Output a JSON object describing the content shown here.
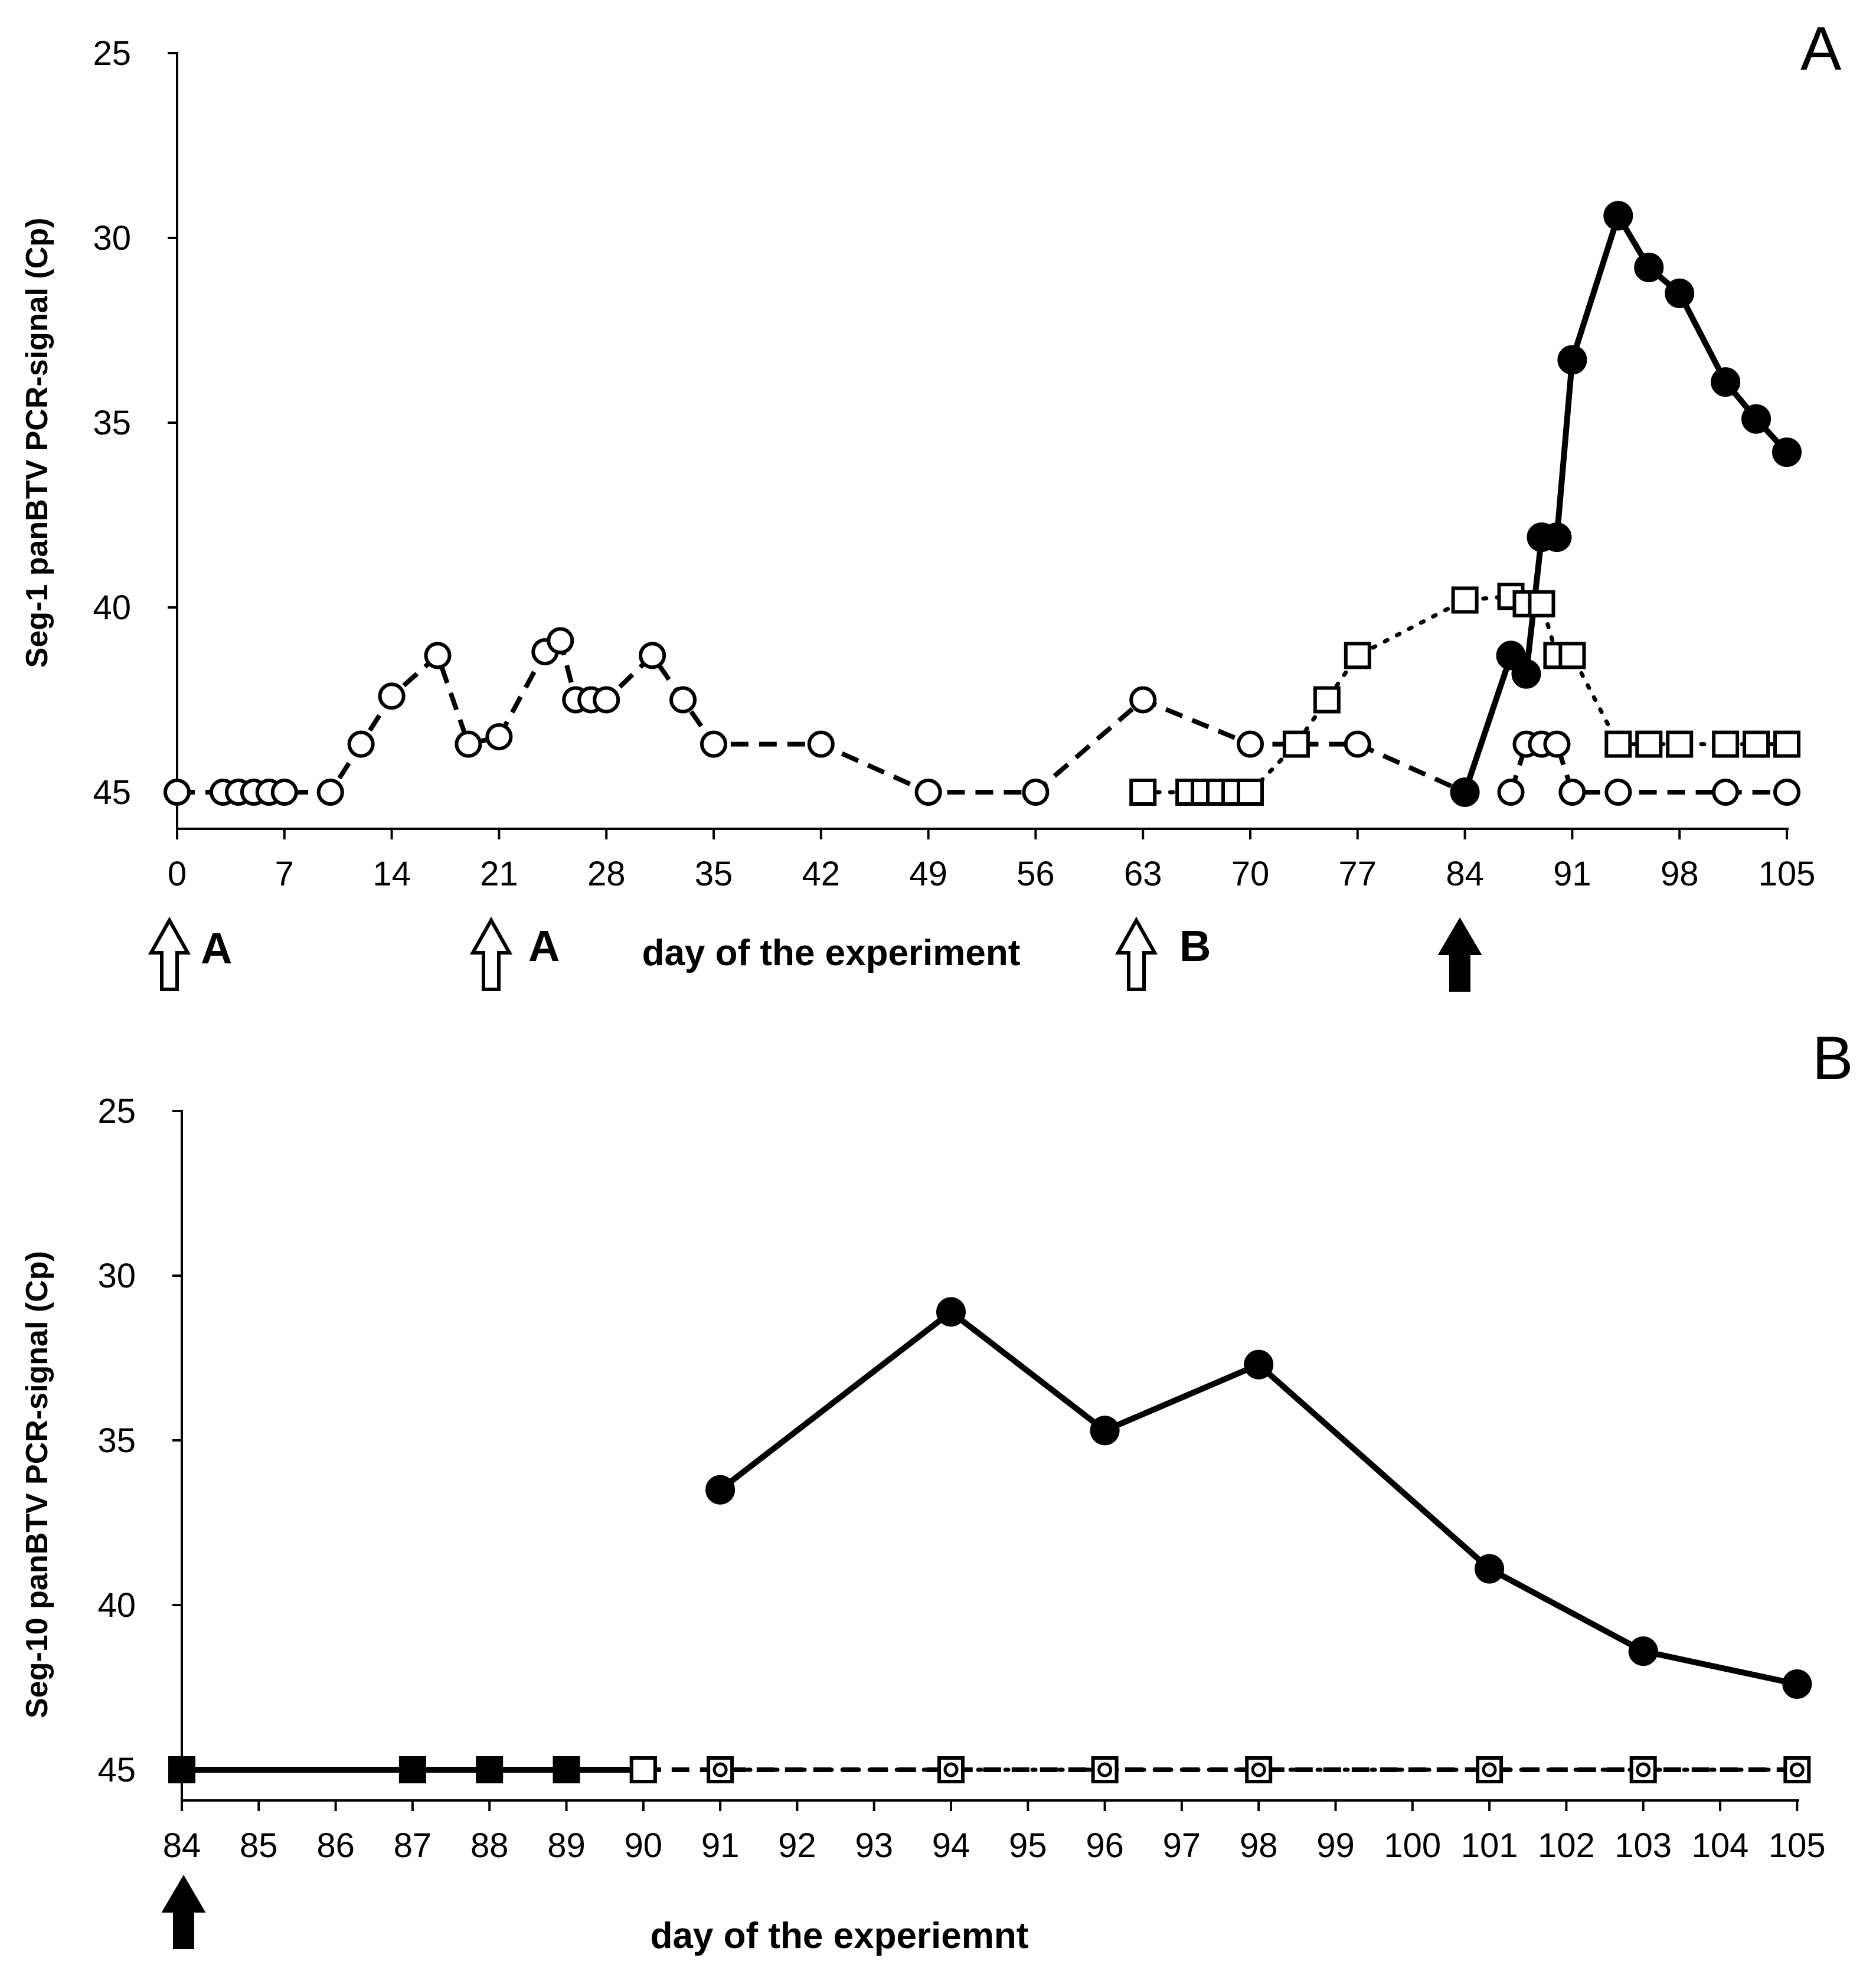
{
  "chart_data": [
    {
      "type": "line",
      "panel_label": "A",
      "ylabel": "Seg-1 panBTV PCR-signal (Cp)",
      "xlabel": "day of the experiment",
      "xlim": [
        0,
        105
      ],
      "ylim": [
        25,
        45
      ],
      "y_inverted": true,
      "x_tick_labels": [
        "0",
        "7",
        "14",
        "21",
        "28",
        "35",
        "42",
        "49",
        "56",
        "63",
        "70",
        "77",
        "84",
        "91",
        "98",
        "105"
      ],
      "y_tick_labels": [
        "25",
        "30",
        "35",
        "40",
        "45"
      ],
      "series": [
        {
          "marker": "open-circle",
          "line": "dashed",
          "points": [
            [
              0,
              45
            ],
            [
              3,
              45
            ],
            [
              4,
              45
            ],
            [
              5,
              45
            ],
            [
              6,
              45
            ],
            [
              7,
              45
            ],
            [
              10,
              45
            ],
            [
              12,
              43.7
            ],
            [
              14,
              42.4
            ],
            [
              17,
              41.3
            ],
            [
              19,
              43.7
            ],
            [
              21,
              43.5
            ],
            [
              24,
              41.2
            ],
            [
              25,
              40.9
            ],
            [
              26,
              42.5
            ],
            [
              27,
              42.5
            ],
            [
              28,
              42.5
            ],
            [
              31,
              41.3
            ],
            [
              33,
              42.5
            ],
            [
              35,
              43.7
            ],
            [
              42,
              43.7
            ],
            [
              49,
              45
            ],
            [
              56,
              45
            ],
            [
              63,
              42.5
            ],
            [
              70,
              43.7
            ],
            [
              77,
              43.7
            ],
            [
              84,
              45
            ]
          ]
        },
        {
          "marker": "open-circle",
          "line": "dashed",
          "points": [
            [
              87,
              45
            ],
            [
              88,
              43.7
            ],
            [
              89,
              43.7
            ],
            [
              90,
              43.7
            ],
            [
              91,
              45
            ],
            [
              94,
              45
            ],
            [
              101,
              45
            ],
            [
              105,
              45
            ]
          ]
        },
        {
          "marker": "open-square",
          "line": "dotted",
          "points": [
            [
              63,
              45
            ],
            [
              66,
              45
            ],
            [
              67,
              45
            ],
            [
              68,
              45
            ],
            [
              69,
              45
            ],
            [
              70,
              45
            ],
            [
              73,
              43.7
            ],
            [
              75,
              42.5
            ],
            [
              77,
              41.3
            ],
            [
              84,
              39.8
            ],
            [
              87,
              39.7
            ],
            [
              88,
              39.9
            ],
            [
              89,
              39.9
            ],
            [
              90,
              41.3
            ],
            [
              91,
              41.3
            ],
            [
              94,
              43.7
            ],
            [
              96,
              43.7
            ],
            [
              98,
              43.7
            ],
            [
              101,
              43.7
            ],
            [
              103,
              43.7
            ],
            [
              105,
              43.7
            ]
          ]
        },
        {
          "marker": "filled-circle",
          "line": "solid",
          "points": [
            [
              84,
              45
            ],
            [
              87,
              41.3
            ],
            [
              88,
              41.8
            ],
            [
              89,
              38.1
            ],
            [
              90,
              38.1
            ],
            [
              91,
              33.3
            ],
            [
              94,
              29.4
            ],
            [
              96,
              30.8
            ],
            [
              98,
              31.5
            ],
            [
              101,
              33.9
            ],
            [
              103,
              34.9
            ],
            [
              105,
              35.8
            ]
          ]
        }
      ],
      "annotations": [
        {
          "day": 0,
          "arrow": "open",
          "text": "A"
        },
        {
          "day": 21,
          "arrow": "open",
          "text": "A"
        },
        {
          "day": 63,
          "arrow": "open",
          "text": "B"
        },
        {
          "day": 84,
          "arrow": "filled",
          "text": ""
        }
      ]
    },
    {
      "type": "line",
      "panel_label": "B",
      "ylabel": "Seg-10 panBTV PCR-signal (Cp)",
      "xlabel": "day of the experiemnt",
      "x_categorical": true,
      "categories": [
        "84",
        "85",
        "86",
        "87",
        "88",
        "89",
        "90",
        "91",
        "92",
        "93",
        "94",
        "95",
        "96",
        "97",
        "98",
        "99",
        "100",
        "101",
        "102",
        "103",
        "104",
        "105"
      ],
      "ylim": [
        25,
        45
      ],
      "y_inverted": true,
      "y_tick_labels": [
        "25",
        "30",
        "35",
        "40",
        "45"
      ],
      "series": [
        {
          "marker": "filled-circle",
          "line": "solid",
          "points": [
            [
              "91",
              36.5
            ],
            [
              "94",
              31.1
            ],
            [
              "96",
              34.7
            ],
            [
              "98",
              32.7
            ],
            [
              "101",
              38.9
            ],
            [
              "103",
              41.4
            ],
            [
              "105",
              42.4
            ]
          ]
        },
        {
          "marker": "filled-square",
          "line": "solid",
          "points": [
            [
              "84",
              45
            ],
            [
              "87",
              45
            ],
            [
              "88",
              45
            ],
            [
              "89",
              45
            ],
            [
              "90",
              45
            ]
          ]
        },
        {
          "marker": "open-square",
          "line": "dashed",
          "points": [
            [
              "90",
              45
            ],
            [
              "91",
              45
            ],
            [
              "94",
              45
            ],
            [
              "96",
              45
            ],
            [
              "98",
              45
            ],
            [
              "101",
              45
            ],
            [
              "103",
              45
            ],
            [
              "105",
              45
            ]
          ]
        },
        {
          "marker": "open-circle-small",
          "line": "dotted",
          "points": [
            [
              "91",
              45
            ],
            [
              "94",
              45
            ],
            [
              "96",
              45
            ],
            [
              "98",
              45
            ],
            [
              "101",
              45
            ],
            [
              "103",
              45
            ],
            [
              "105",
              45
            ]
          ]
        }
      ],
      "annotations": [
        {
          "category": "84",
          "arrow": "filled",
          "text": ""
        }
      ]
    }
  ]
}
